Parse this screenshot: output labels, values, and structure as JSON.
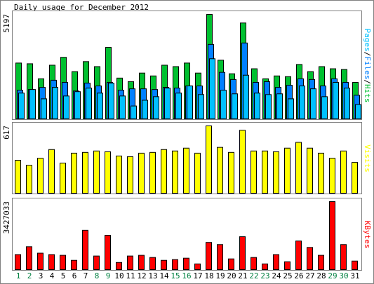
{
  "chart_data": [
    {
      "type": "bar",
      "title": "Daily usage for December 2012",
      "legend_separator": "/",
      "ylim": [
        0,
        5197
      ],
      "yticks": [
        5197
      ],
      "series": [
        {
          "name": "Hits",
          "color": "#00c030",
          "values": [
            2777,
            2741,
            1994,
            2670,
            3062,
            2350,
            2848,
            2599,
            3560,
            2029,
            1851,
            2278,
            2136,
            2670,
            2599,
            2777,
            2278,
            5197,
            2919,
            2243,
            4770,
            2492,
            1994,
            2136,
            2100,
            2706,
            2350,
            2599,
            2492,
            2456,
            1816
          ]
        },
        {
          "name": "Files",
          "color": "#0080ff",
          "values": [
            1424,
            1460,
            1566,
            1922,
            1816,
            1388,
            1780,
            1638,
            1816,
            1424,
            1495,
            1495,
            1460,
            1566,
            1531,
            1638,
            1638,
            3702,
            2314,
            1958,
            3774,
            1816,
            1851,
            1566,
            1673,
            1994,
            1958,
            1638,
            1994,
            1816,
            1175
          ]
        },
        {
          "name": "Pages",
          "color": "#00c0ff",
          "values": [
            1282,
            1460,
            997,
            1566,
            1139,
            1353,
            1531,
            1282,
            1780,
            1139,
            641,
            926,
            1104,
            1531,
            1282,
            1638,
            1210,
            2990,
            1424,
            1246,
            2172,
            1282,
            1210,
            1246,
            997,
            1638,
            1495,
            1104,
            1816,
            1531,
            712
          ]
        }
      ]
    },
    {
      "type": "bar",
      "ylim": [
        0,
        617
      ],
      "yticks": [
        617
      ],
      "series": [
        {
          "name": "Visits",
          "color": "#ffff00",
          "values": [
            302,
            256,
            321,
            400,
            276,
            367,
            374,
            387,
            380,
            341,
            335,
            367,
            374,
            400,
            387,
            413,
            367,
            617,
            420,
            374,
            577,
            387,
            387,
            380,
            413,
            466,
            413,
            367,
            321,
            387,
            282
          ]
        }
      ]
    },
    {
      "type": "bar",
      "ylim": [
        0,
        3427033
      ],
      "yticks": [
        3427033
      ],
      "categories": [
        "1",
        "2",
        "3",
        "4",
        "5",
        "6",
        "7",
        "8",
        "9",
        "10",
        "11",
        "12",
        "13",
        "14",
        "15",
        "16",
        "17",
        "18",
        "19",
        "20",
        "21",
        "22",
        "23",
        "24",
        "25",
        "26",
        "27",
        "28",
        "29",
        "30",
        "31"
      ],
      "category_colors": [
        "#008040",
        "#008040",
        "#000000",
        "#000000",
        "#000000",
        "#000000",
        "#000000",
        "#008040",
        "#008040",
        "#000000",
        "#000000",
        "#000000",
        "#000000",
        "#000000",
        "#008040",
        "#008040",
        "#000000",
        "#000000",
        "#000000",
        "#000000",
        "#000000",
        "#008040",
        "#008040",
        "#000000",
        "#000000",
        "#000000",
        "#000000",
        "#000000",
        "#008040",
        "#008040",
        "#000000"
      ],
      "series": [
        {
          "name": "KBytes",
          "color": "#ff0000",
          "values": [
            757554,
            1154368,
            829702,
            757554,
            721480,
            468962,
            1984070,
            685406,
            1731552,
            360740,
            685406,
            721480,
            613258,
            468962,
            505036,
            577184,
            288592,
            1370812,
            1262590,
            541110,
            1659404,
            613258,
            288592,
            757554,
            396814,
            1442960,
            1118294,
            721480,
            3427033,
            1262590,
            432888
          ]
        }
      ]
    }
  ]
}
